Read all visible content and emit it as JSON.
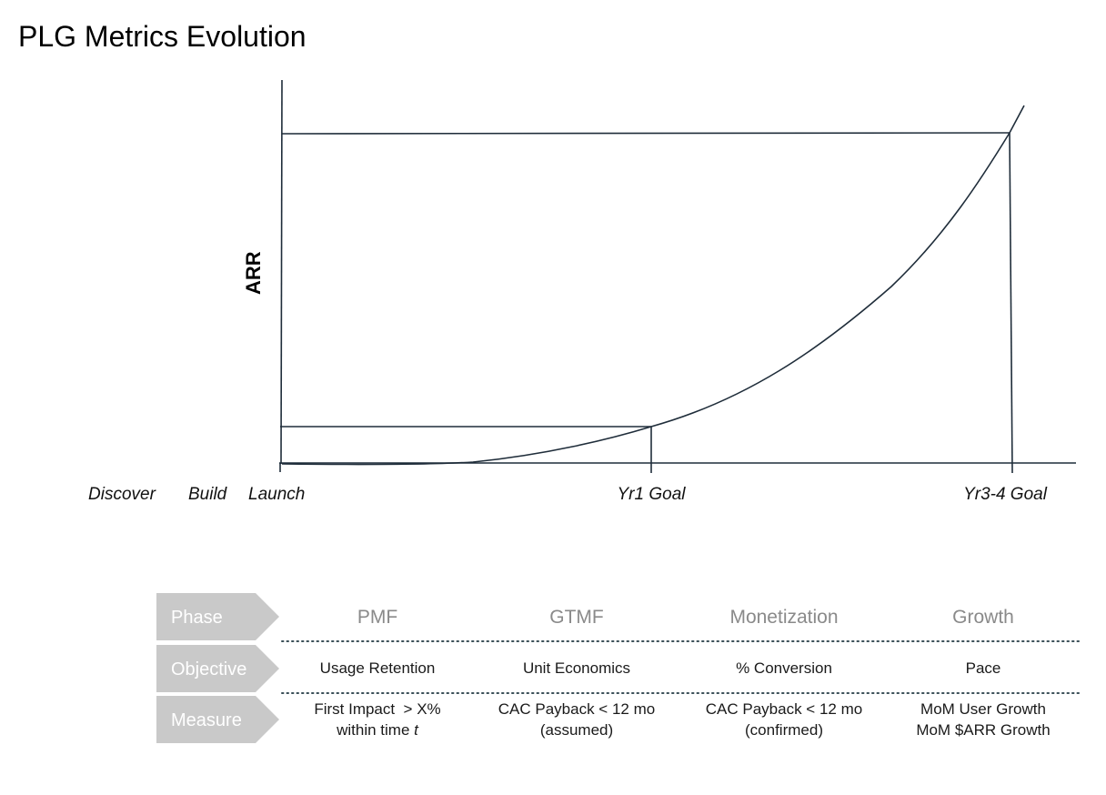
{
  "title": "PLG Metrics Evolution",
  "chart": {
    "y_axis_label": "ARR",
    "x_labels": {
      "discover": "Discover",
      "build": "Build",
      "launch": "Launch",
      "yr1_goal": "Yr1 Goal",
      "yr3_4_goal": "Yr3-4 Goal"
    }
  },
  "table": {
    "row_labels": {
      "phase": "Phase",
      "objective": "Objective",
      "measure": "Measure"
    },
    "phases": [
      "PMF",
      "GTMF",
      "Monetization",
      "Growth"
    ],
    "objectives": [
      "Usage Retention",
      "Unit Economics",
      "% Conversion",
      "Pace"
    ],
    "measures": {
      "pmf": {
        "line1": "First Impact  > X%",
        "line2_prefix": "within time ",
        "line2_var": "t"
      },
      "gtmf": {
        "line1": "CAC Payback < 12 mo",
        "line2": "(assumed)"
      },
      "monetization": {
        "line1": "CAC Payback < 12 mo",
        "line2": "(confirmed)"
      },
      "growth": {
        "line1": "MoM User Growth",
        "line2": "MoM $ARR Growth"
      }
    }
  },
  "colors": {
    "line": "#1f2d3a",
    "tag_fill": "#c9c9c9",
    "header_text": "#8a8a8a"
  }
}
